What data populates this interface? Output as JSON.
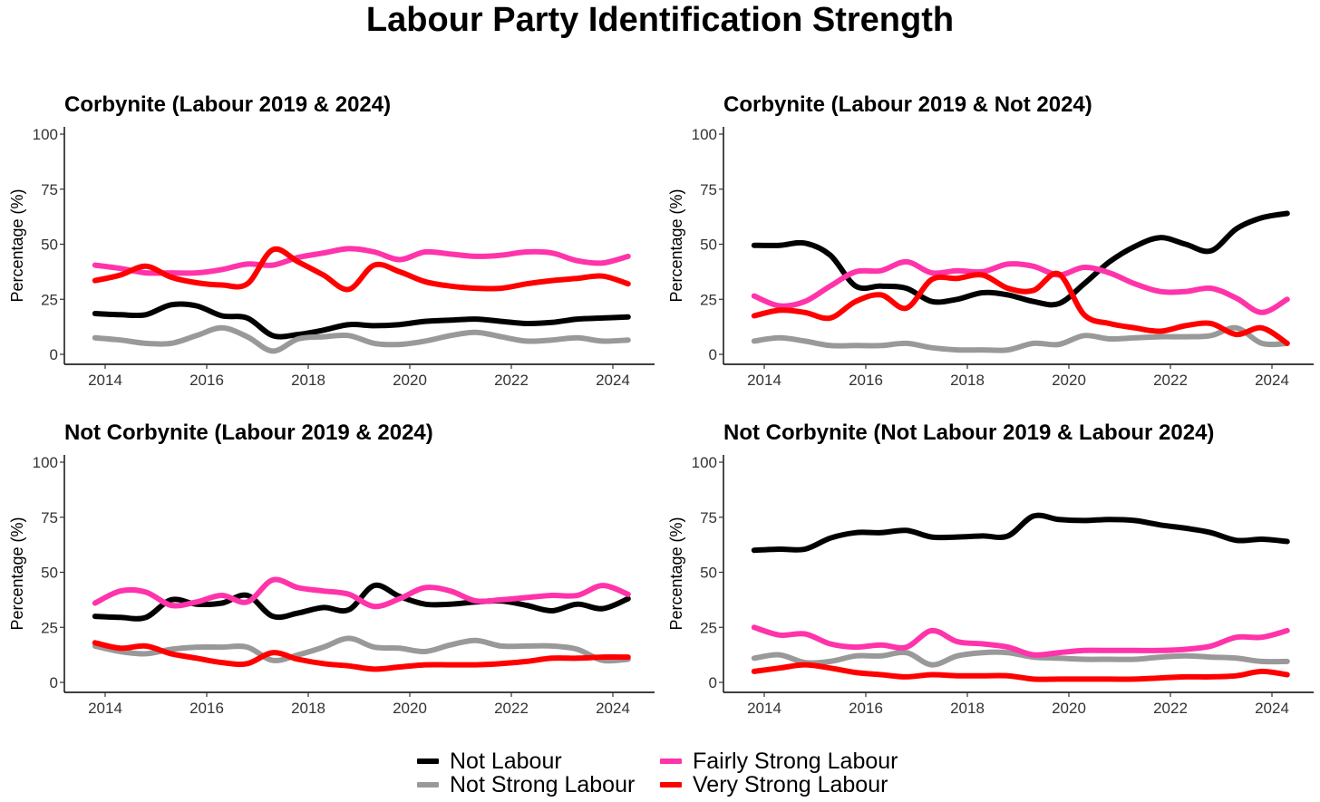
{
  "title": "Labour Party Identification Strength",
  "legend": [
    {
      "key": "not_labour",
      "label": "Not Labour",
      "color": "#000000"
    },
    {
      "key": "not_strong",
      "label": "Not Strong Labour",
      "color": "#999999"
    },
    {
      "key": "fairly_strong",
      "label": "Fairly Strong Labour",
      "color": "#ff33aa"
    },
    {
      "key": "very_strong",
      "label": "Very Strong Labour",
      "color": "#ff0000"
    }
  ],
  "chart_data": [
    {
      "type": "line",
      "title": "Corbynite (Labour 2019 & 2024)",
      "xlabel": "",
      "ylabel": "Percentage (%)",
      "xlim": [
        2013.8,
        2024.3
      ],
      "ylim": [
        0,
        100
      ],
      "xticks": [
        2014,
        2016,
        2018,
        2020,
        2022,
        2024
      ],
      "yticks": [
        0,
        25,
        50,
        75,
        100
      ],
      "x": [
        2013.8,
        2014.3,
        2014.8,
        2015.3,
        2015.8,
        2016.3,
        2016.8,
        2017.3,
        2017.8,
        2018.3,
        2018.8,
        2019.3,
        2019.8,
        2020.3,
        2020.8,
        2021.3,
        2021.8,
        2022.3,
        2022.8,
        2023.3,
        2023.8,
        2024.3
      ],
      "series": [
        {
          "name": "Not Labour",
          "values": [
            18.5,
            18,
            18,
            22.5,
            22,
            17.5,
            16.5,
            8.5,
            9,
            11,
            13.5,
            13,
            13.5,
            15,
            15.5,
            16,
            15,
            14,
            14.5,
            16,
            16.5,
            17
          ]
        },
        {
          "name": "Not Strong Labour",
          "values": [
            7.5,
            6.5,
            5,
            5,
            8.5,
            12,
            8,
            1.5,
            7,
            8,
            8.5,
            5,
            4.5,
            6,
            8.5,
            10,
            8,
            6,
            6.5,
            7.5,
            6,
            6.5
          ]
        },
        {
          "name": "Fairly Strong Labour",
          "values": [
            40.5,
            39,
            37,
            37,
            37,
            38.5,
            41,
            40.5,
            44,
            46,
            48,
            46.5,
            43,
            46.5,
            45.5,
            44.5,
            45,
            46.5,
            46,
            42.5,
            41.5,
            44.5
          ]
        },
        {
          "name": "Very Strong Labour",
          "values": [
            33.5,
            36,
            40,
            35,
            32.5,
            31.5,
            32,
            47.5,
            42,
            36,
            29.5,
            40.5,
            37.5,
            33,
            31,
            30,
            30,
            32,
            33.5,
            34.5,
            35.5,
            32
          ]
        }
      ]
    },
    {
      "type": "line",
      "title": "Corbynite (Labour 2019 & Not 2024)",
      "xlabel": "",
      "ylabel": "Percentage (%)",
      "xlim": [
        2013.8,
        2024.3
      ],
      "ylim": [
        0,
        100
      ],
      "xticks": [
        2014,
        2016,
        2018,
        2020,
        2022,
        2024
      ],
      "yticks": [
        0,
        25,
        50,
        75,
        100
      ],
      "x": [
        2013.8,
        2014.3,
        2014.8,
        2015.3,
        2015.8,
        2016.3,
        2016.8,
        2017.3,
        2017.8,
        2018.3,
        2018.8,
        2019.3,
        2019.8,
        2020.3,
        2020.8,
        2021.3,
        2021.8,
        2022.3,
        2022.8,
        2023.3,
        2023.8,
        2024.3
      ],
      "series": [
        {
          "name": "Not Labour",
          "values": [
            49.5,
            49.5,
            50.5,
            45,
            31,
            31,
            30,
            24,
            25,
            28,
            27,
            24,
            23,
            32,
            42,
            49,
            53,
            50,
            47,
            57,
            62,
            64
          ]
        },
        {
          "name": "Not Strong Labour",
          "values": [
            6,
            7.5,
            6,
            4,
            4,
            4,
            5,
            3,
            2,
            2,
            2,
            5,
            4.5,
            8.5,
            7,
            7.5,
            8,
            8,
            8.5,
            12,
            5,
            5
          ]
        },
        {
          "name": "Fairly Strong Labour",
          "values": [
            26.5,
            22,
            24,
            31,
            37.5,
            38,
            42,
            37,
            38,
            37.5,
            41,
            40,
            36,
            39.5,
            37,
            32,
            28.5,
            28.5,
            30,
            25.5,
            19,
            25
          ]
        },
        {
          "name": "Very Strong Labour",
          "values": [
            17.5,
            20,
            19,
            16.5,
            24,
            27,
            21,
            34,
            34.5,
            36,
            30,
            29,
            36.5,
            18,
            14,
            12,
            10.5,
            13,
            14,
            9,
            12,
            5
          ]
        }
      ]
    },
    {
      "type": "line",
      "title": "Not Corbynite (Labour 2019 & 2024)",
      "xlabel": "",
      "ylabel": "Percentage (%)",
      "xlim": [
        2013.8,
        2024.3
      ],
      "ylim": [
        0,
        100
      ],
      "xticks": [
        2014,
        2016,
        2018,
        2020,
        2022,
        2024
      ],
      "yticks": [
        0,
        25,
        50,
        75,
        100
      ],
      "x": [
        2013.8,
        2014.3,
        2014.8,
        2015.3,
        2015.8,
        2016.3,
        2016.8,
        2017.3,
        2017.8,
        2018.3,
        2018.8,
        2019.3,
        2019.8,
        2020.3,
        2020.8,
        2021.3,
        2021.8,
        2022.3,
        2022.8,
        2023.3,
        2023.8,
        2024.3
      ],
      "series": [
        {
          "name": "Not Labour",
          "values": [
            30,
            29.5,
            29.5,
            37.5,
            35.5,
            36,
            39.5,
            30,
            31.5,
            34,
            33,
            44,
            39,
            35.5,
            35.5,
            36.5,
            37,
            35,
            32.5,
            35.5,
            33.5,
            38
          ]
        },
        {
          "name": "Not Strong Labour",
          "values": [
            16.5,
            14,
            13,
            15,
            16,
            16,
            16,
            10,
            12.5,
            16,
            20,
            16,
            15.5,
            14,
            17,
            19,
            16.5,
            16.5,
            16.5,
            15,
            10,
            10.5
          ]
        },
        {
          "name": "Fairly Strong Labour",
          "values": [
            36,
            41.5,
            41,
            35,
            36.5,
            39.5,
            36.5,
            46.5,
            43,
            41.5,
            40,
            34.5,
            38,
            43,
            41.5,
            37,
            37.5,
            38.5,
            39.5,
            39.5,
            44,
            40
          ]
        },
        {
          "name": "Very Strong Labour",
          "values": [
            18,
            15.5,
            16.5,
            13,
            11,
            9,
            8.5,
            13.5,
            10.5,
            8.5,
            7.5,
            6,
            7,
            8,
            8,
            8,
            8.5,
            9.5,
            11,
            11,
            11.5,
            11.5
          ]
        }
      ]
    },
    {
      "type": "line",
      "title": "Not Corbynite (Not Labour 2019 & Labour 2024)",
      "xlabel": "",
      "ylabel": "Percentage (%)",
      "xlim": [
        2013.8,
        2024.3
      ],
      "ylim": [
        0,
        100
      ],
      "xticks": [
        2014,
        2016,
        2018,
        2020,
        2022,
        2024
      ],
      "yticks": [
        0,
        25,
        50,
        75,
        100
      ],
      "x": [
        2013.8,
        2014.3,
        2014.8,
        2015.3,
        2015.8,
        2016.3,
        2016.8,
        2017.3,
        2017.8,
        2018.3,
        2018.8,
        2019.3,
        2019.8,
        2020.3,
        2020.8,
        2021.3,
        2021.8,
        2022.3,
        2022.8,
        2023.3,
        2023.8,
        2024.3
      ],
      "series": [
        {
          "name": "Not Labour",
          "values": [
            60,
            60.5,
            60.5,
            65.5,
            68,
            68,
            69,
            66,
            66,
            66.5,
            66.5,
            75.5,
            74,
            73.5,
            74,
            73.5,
            71.5,
            70,
            68,
            64.5,
            65,
            64
          ]
        },
        {
          "name": "Not Strong Labour",
          "values": [
            11,
            12.5,
            9,
            9.5,
            12,
            12,
            13.5,
            8,
            12,
            13.5,
            13.5,
            11.5,
            11,
            10.5,
            10.5,
            10.5,
            11.5,
            12,
            11.5,
            11,
            9.5,
            9.5
          ]
        },
        {
          "name": "Fairly Strong Labour",
          "values": [
            25,
            21.5,
            22,
            17.5,
            16,
            17,
            16,
            23.5,
            18.5,
            17.5,
            16,
            12.5,
            13.5,
            14.5,
            14.5,
            14.5,
            14.5,
            15,
            16.5,
            20.5,
            20.5,
            23.5
          ]
        },
        {
          "name": "Very Strong Labour",
          "values": [
            5,
            6.5,
            8,
            6.5,
            4.5,
            3.5,
            2.5,
            3.5,
            3,
            3,
            3,
            1.5,
            1.5,
            1.5,
            1.5,
            1.5,
            2,
            2.5,
            2.5,
            3,
            5,
            3.5
          ]
        }
      ]
    }
  ]
}
